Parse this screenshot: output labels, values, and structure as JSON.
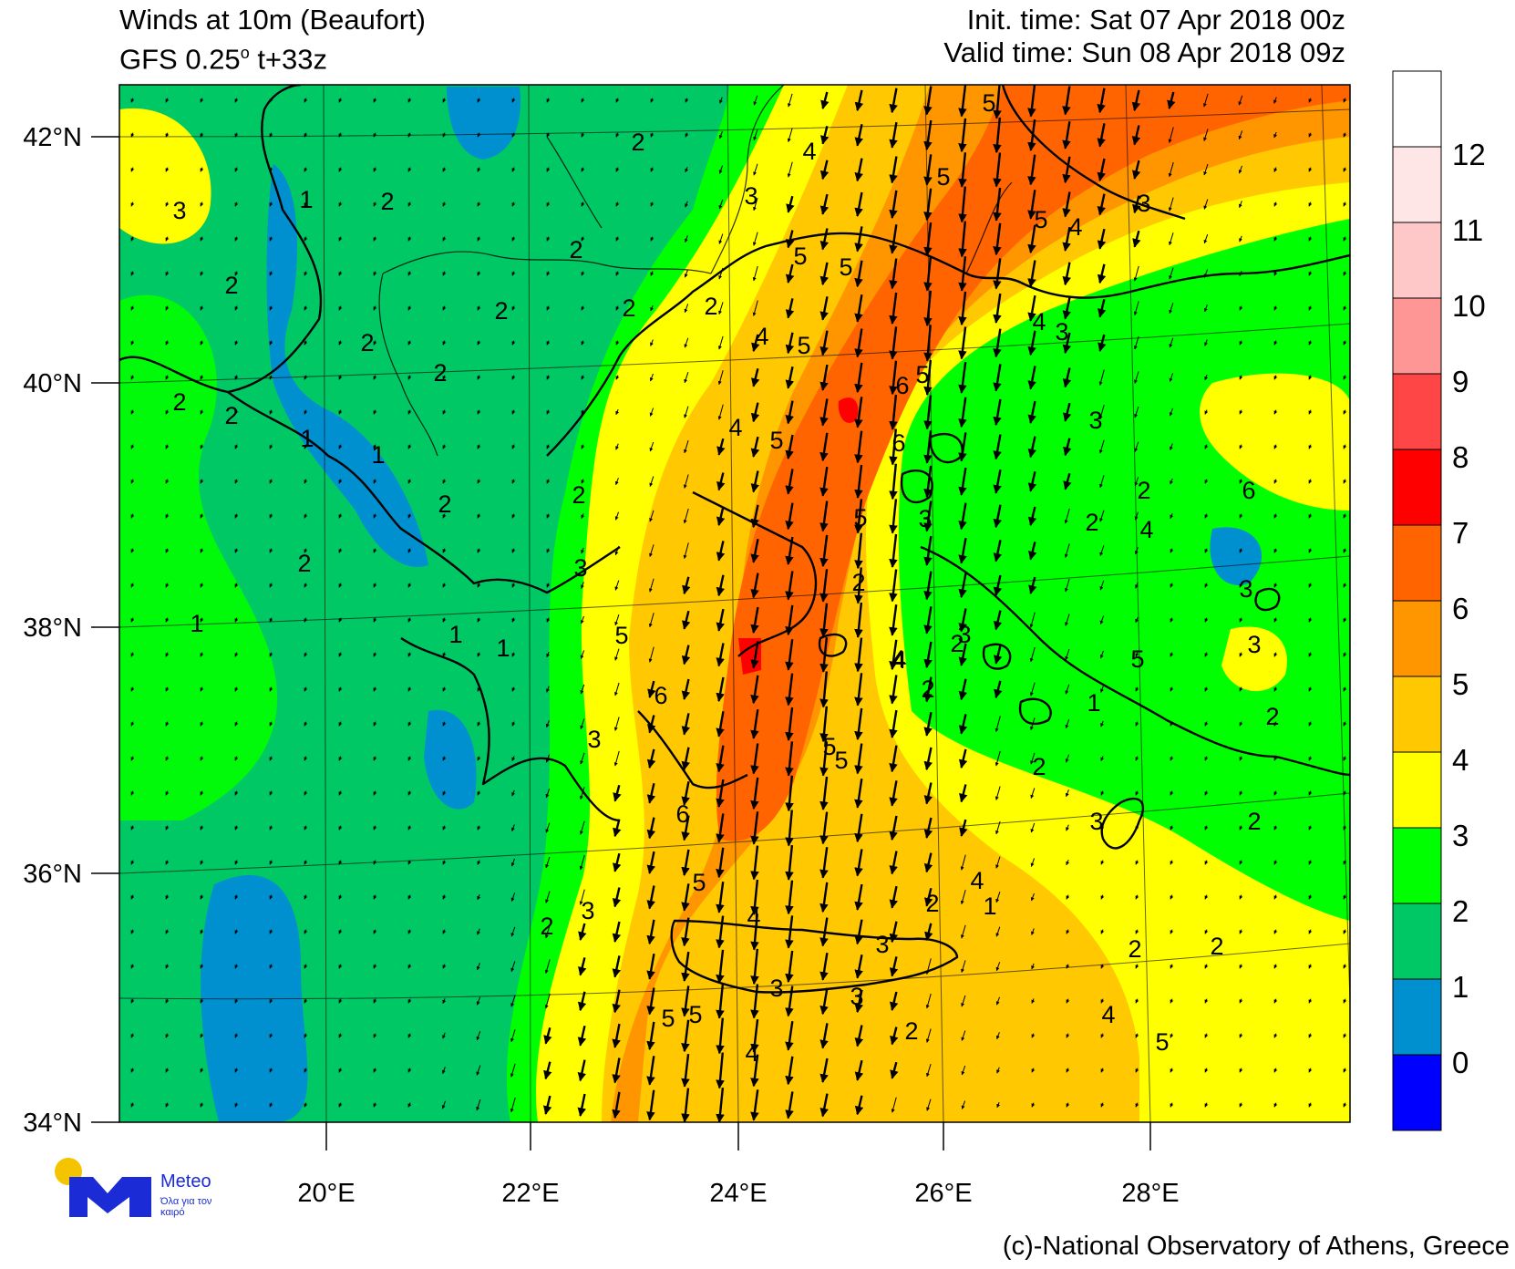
{
  "header": {
    "title": "Winds at 10m (Beaufort)",
    "model": "GFS 0.25",
    "degree_mark": "o",
    "lead": " t+33z",
    "init_time": "Init. time: Sat 07 Apr 2018 00z",
    "valid_time": "Valid time: Sun 08 Apr 2018 09z"
  },
  "axes": {
    "lat_labels": [
      "42°N",
      "40°N",
      "38°N",
      "36°N",
      "34°N"
    ],
    "lon_labels": [
      "20°E",
      "22°E",
      "24°E",
      "26°E",
      "28°E"
    ]
  },
  "colorbar": {
    "levels": [
      "0",
      "1",
      "2",
      "3",
      "4",
      "5",
      "6",
      "7",
      "8",
      "9",
      "10",
      "11",
      "12"
    ],
    "colors": [
      "#0000ff",
      "#0090d0",
      "#00c864",
      "#00ff00",
      "#ffff00",
      "#ffc800",
      "#ff9600",
      "#ff6400",
      "#ff0000",
      "#ff4646",
      "#ff9696",
      "#ffc8c8",
      "#ffe6e6",
      "#ffffff"
    ]
  },
  "contour_labels": [
    {
      "text": "3"
    },
    {
      "text": "1"
    },
    {
      "text": "2"
    },
    {
      "text": "2"
    },
    {
      "text": "2"
    },
    {
      "text": "4"
    },
    {
      "text": "5"
    },
    {
      "text": "5"
    },
    {
      "text": "5"
    },
    {
      "text": "4"
    },
    {
      "text": "3"
    },
    {
      "text": "2"
    },
    {
      "text": "2"
    },
    {
      "text": "2"
    },
    {
      "text": "2"
    },
    {
      "text": "2"
    },
    {
      "text": "3"
    },
    {
      "text": "4"
    },
    {
      "text": "5"
    },
    {
      "text": "5"
    },
    {
      "text": "5"
    },
    {
      "text": "6"
    },
    {
      "text": "3"
    },
    {
      "text": "3"
    },
    {
      "text": "2"
    },
    {
      "text": "2"
    },
    {
      "text": "1"
    },
    {
      "text": "1"
    },
    {
      "text": "2"
    },
    {
      "text": "4"
    },
    {
      "text": "6"
    },
    {
      "text": "5"
    },
    {
      "text": "4"
    },
    {
      "text": "5"
    },
    {
      "text": "3"
    },
    {
      "text": "2"
    },
    {
      "text": "2"
    },
    {
      "text": "2"
    },
    {
      "text": "2"
    },
    {
      "text": "3"
    },
    {
      "text": "4"
    },
    {
      "text": "6"
    },
    {
      "text": "5"
    },
    {
      "text": "3"
    },
    {
      "text": "2"
    },
    {
      "text": "1"
    },
    {
      "text": "1"
    },
    {
      "text": "1"
    },
    {
      "text": "2"
    },
    {
      "text": "3"
    },
    {
      "text": "5"
    },
    {
      "text": "6"
    },
    {
      "text": "5"
    },
    {
      "text": "4"
    },
    {
      "text": "3"
    },
    {
      "text": "2"
    },
    {
      "text": "2"
    },
    {
      "text": "2"
    },
    {
      "text": "1"
    },
    {
      "text": "2"
    },
    {
      "text": "2"
    },
    {
      "text": "3"
    },
    {
      "text": "6"
    },
    {
      "text": "5"
    },
    {
      "text": "5"
    },
    {
      "text": "4"
    },
    {
      "text": "3"
    },
    {
      "text": "4"
    },
    {
      "text": "5"
    },
    {
      "text": "4"
    },
    {
      "text": "3"
    },
    {
      "text": "2"
    },
    {
      "text": "1"
    },
    {
      "text": "2"
    },
    {
      "text": "2"
    },
    {
      "text": "5"
    },
    {
      "text": "4"
    },
    {
      "text": "3"
    },
    {
      "text": "3"
    },
    {
      "text": "2"
    },
    {
      "text": "5"
    },
    {
      "text": "5"
    },
    {
      "text": "4"
    },
    {
      "text": "3"
    },
    {
      "text": "2"
    }
  ],
  "credit": "(c)-National Observatory of Athens, Greece",
  "logo": {
    "name": "Meteo",
    "tagline": "Όλα για τον καιρό"
  }
}
